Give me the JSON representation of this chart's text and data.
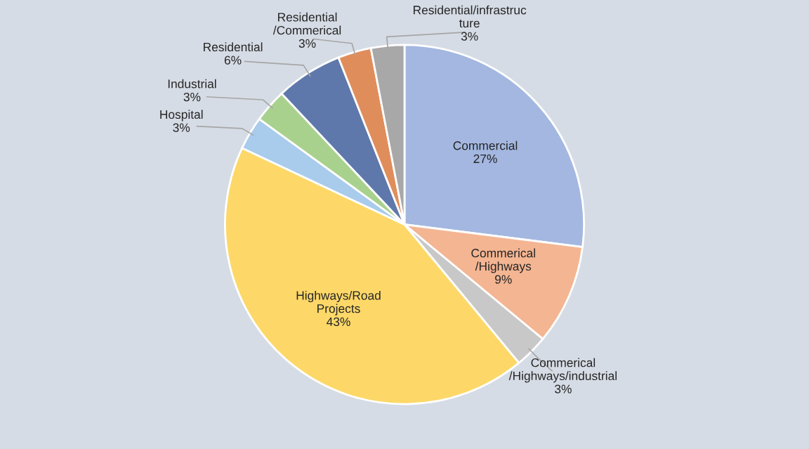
{
  "chart_data": {
    "type": "pie",
    "categories": [
      "Commercial",
      "Commerical\n/Highways",
      "Commerical\n/Highways/industrial",
      "Highways/Road\nProjects",
      "Hospital",
      "Industrial",
      "Residential",
      "Residential\n/Commerical",
      "Residential/infrastruc\nture"
    ],
    "values": [
      27,
      9,
      3,
      43,
      3,
      3,
      6,
      3,
      3
    ],
    "value_labels": [
      "27%",
      "9%",
      "3%",
      "43%",
      "3%",
      "3%",
      "6%",
      "3%",
      "3%"
    ],
    "colors": [
      "#a3b7e0",
      "#f4b592",
      "#c8c8c8",
      "#fdd868",
      "#a9cbec",
      "#a9d18e",
      "#5f78ab",
      "#e08d5c",
      "#a8a8a8"
    ]
  }
}
